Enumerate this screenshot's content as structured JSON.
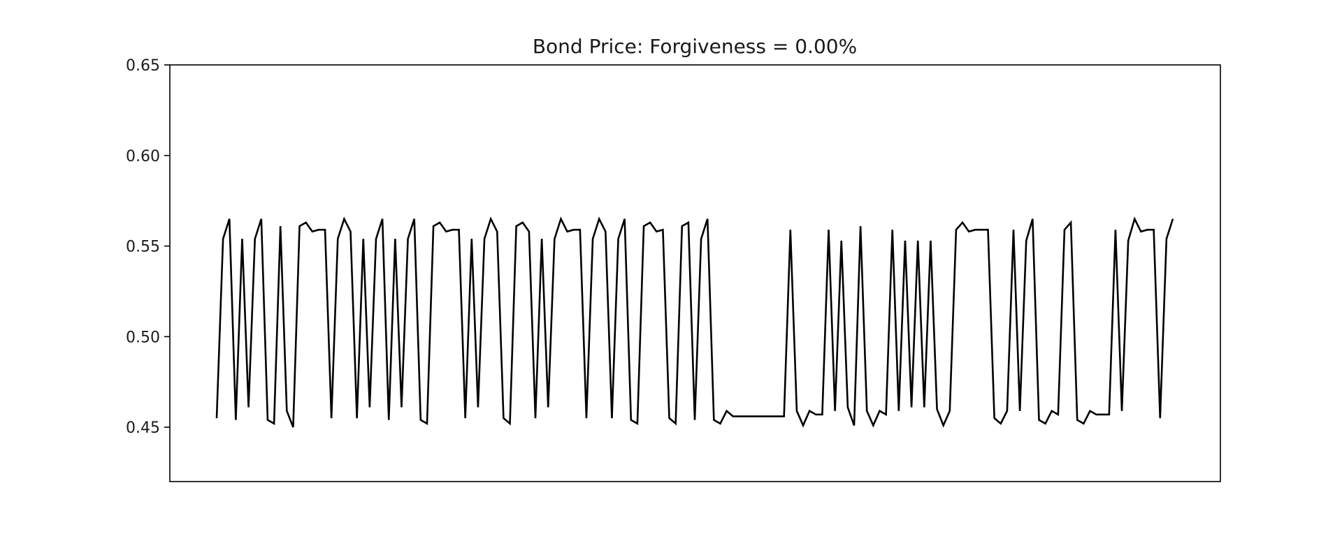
{
  "chart_data": {
    "type": "line",
    "title": "Bond Price: Forgiveness = 0.00%",
    "xlabel": "",
    "ylabel": "",
    "ylim": [
      0.42,
      0.65
    ],
    "y_ticks": [
      "0.45",
      "0.50",
      "0.55",
      "0.60",
      "0.65"
    ],
    "x_ticks_visible": false,
    "grid": false,
    "line_color": "#000000",
    "series": [
      {
        "values": [
          0.455,
          0.554,
          0.565,
          0.454,
          0.554,
          0.461,
          0.554,
          0.565,
          0.454,
          0.452,
          0.561,
          0.459,
          0.45,
          0.561,
          0.563,
          0.558,
          0.559,
          0.559,
          0.455,
          0.554,
          0.565,
          0.558,
          0.455,
          0.554,
          0.461,
          0.554,
          0.565,
          0.454,
          0.554,
          0.461,
          0.554,
          0.565,
          0.454,
          0.452,
          0.561,
          0.563,
          0.558,
          0.559,
          0.559,
          0.455,
          0.554,
          0.461,
          0.554,
          0.565,
          0.558,
          0.455,
          0.452,
          0.561,
          0.563,
          0.558,
          0.455,
          0.554,
          0.461,
          0.554,
          0.565,
          0.558,
          0.559,
          0.559,
          0.455,
          0.554,
          0.565,
          0.558,
          0.455,
          0.554,
          0.565,
          0.454,
          0.452,
          0.561,
          0.563,
          0.558,
          0.559,
          0.455,
          0.452,
          0.561,
          0.563,
          0.454,
          0.554,
          0.565,
          0.454,
          0.452,
          0.459,
          0.456,
          0.456,
          0.456,
          0.456,
          0.456,
          0.456,
          0.456,
          0.456,
          0.456,
          0.559,
          0.459,
          0.451,
          0.459,
          0.457,
          0.457,
          0.559,
          0.459,
          0.553,
          0.461,
          0.451,
          0.561,
          0.459,
          0.451,
          0.459,
          0.457,
          0.559,
          0.459,
          0.553,
          0.461,
          0.553,
          0.461,
          0.553,
          0.46,
          0.451,
          0.459,
          0.559,
          0.563,
          0.558,
          0.559,
          0.559,
          0.559,
          0.455,
          0.452,
          0.459,
          0.559,
          0.459,
          0.553,
          0.565,
          0.454,
          0.452,
          0.459,
          0.457,
          0.559,
          0.563,
          0.454,
          0.452,
          0.459,
          0.457,
          0.457,
          0.457,
          0.559,
          0.459,
          0.553,
          0.565,
          0.558,
          0.559,
          0.559,
          0.455,
          0.554,
          0.565
        ]
      }
    ]
  }
}
